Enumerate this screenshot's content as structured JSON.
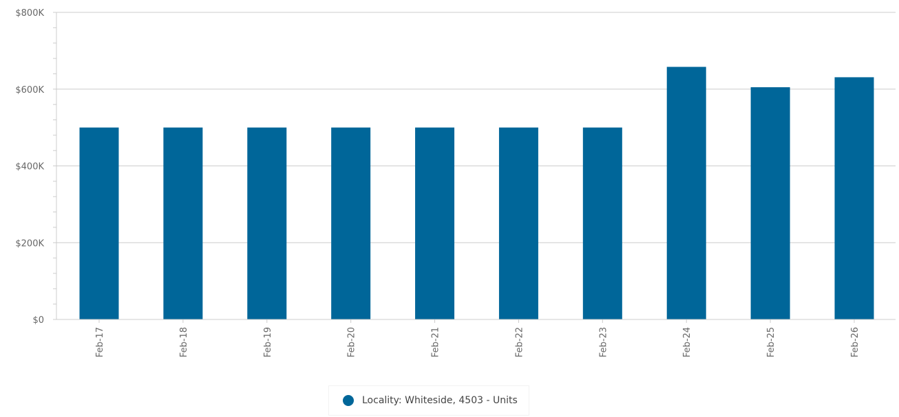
{
  "chart_data": {
    "type": "bar",
    "categories": [
      "Feb-17",
      "Feb-18",
      "Feb-19",
      "Feb-20",
      "Feb-21",
      "Feb-22",
      "Feb-23",
      "Feb-24",
      "Feb-25",
      "Feb-26"
    ],
    "series": [
      {
        "name": "Locality: Whiteside, 4503 - Units",
        "color": "#006699",
        "values": [
          500000,
          500000,
          500000,
          500000,
          500000,
          500000,
          500000,
          658000,
          605000,
          631000
        ]
      }
    ],
    "y_ticks": [
      {
        "value": 0,
        "label": "$0"
      },
      {
        "value": 200000,
        "label": "$200K"
      },
      {
        "value": 400000,
        "label": "$400K"
      },
      {
        "value": 600000,
        "label": "$600K"
      },
      {
        "value": 800000,
        "label": "$800K"
      }
    ],
    "ylim": [
      0,
      800000
    ],
    "grid": true,
    "legend_position": "bottom-center",
    "title": "",
    "xlabel": "",
    "ylabel": ""
  }
}
